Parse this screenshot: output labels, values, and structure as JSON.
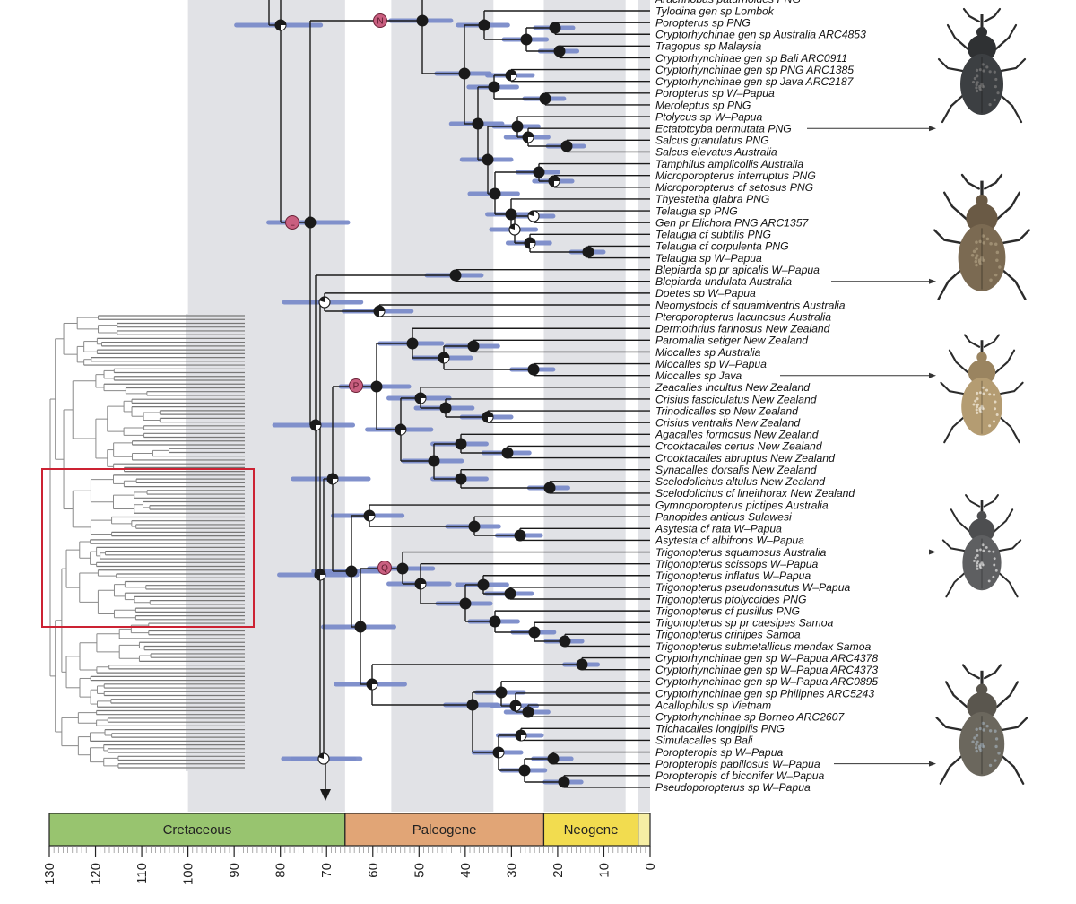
{
  "figure": {
    "taxa": [
      "Arachnobas paturnoides PNG",
      "Tylodina gen sp Lombok",
      "Poropterus sp PNG",
      "Cryptorhychinae gen sp Australia ARC4853",
      "Tragopus sp Malaysia",
      "Cryptorhynchinae gen sp Bali ARC0911",
      "Cryptorhynchinae gen sp PNG ARC1385",
      "Cryptorhynchinae gen sp Java ARC2187",
      "Poropterus sp W–Papua",
      "Meroleptus sp PNG",
      "Ptolycus sp W–Papua",
      "Ectatotcyba permutata PNG",
      "Salcus granulatus PNG",
      "Salcus elevatus Australia",
      "Tamphilus amplicollis Australia",
      "Microporopterus interruptus PNG",
      "Microporopterus cf setosus PNG",
      "Thyestetha glabra PNG",
      "Telaugia sp PNG",
      "Gen pr Elichora PNG ARC1357",
      "Telaugia cf subtilis PNG",
      "Telaugia cf corpulenta PNG",
      "Telaugia sp W–Papua",
      "Blepiarda sp pr apicalis W–Papua",
      "Blepiarda undulata Australia",
      "Doetes sp W–Papua",
      "Neomystocis cf squamiventris Australia",
      "Pteroporopterus lacunosus Australia",
      "Dermothrius farinosus New Zealand",
      "Paromalia setiger New Zealand",
      "Miocalles sp Australia",
      "Miocalles sp W–Papua",
      "Miocalles sp Java",
      "Zeacalles incultus New Zealand",
      "Crisius fasciculatus New Zealand",
      "Trinodicalles sp New Zealand",
      "Crisius ventralis New Zealand",
      "Agacalles formosus New Zealand",
      "Crooktacalles certus New Zealand",
      "Crooktacalles abruptus New Zealand",
      "Synacalles dorsalis New Zealand",
      "Scelodolichus altulus New Zealand",
      "Scelodolichus cf lineithorax New Zealand",
      "Gymnoporopterus pictipes Australia",
      "Panopides anticus Sulawesi",
      "Asytesta cf rata W–Papua",
      "Asytesta cf albifrons W–Papua",
      "Trigonopterus squamosus Australia",
      "Trigonopterus scissops W–Papua",
      "Trigonopterus inflatus W–Papua",
      "Trigonopterus pseudonasutus W–Papua",
      "Trigonopterus ptolycoides PNG",
      "Trigonopterus cf pusillus PNG",
      "Trigonopterus sp pr caesipes Samoa",
      "Trigonopterus crinipes Samoa",
      "Trigonopterus submetallicus mendax Samoa",
      "Cryptorhynchinae gen sp W–Papua ARC4378",
      "Cryptorhynchinae gen sp W–Papua ARC4373",
      "Cryptorhynchinae gen sp W–Papua ARC0895",
      "Cryptorhynchinae gen sp Philipnes ARC5243",
      "Acallophilus sp Vietnam",
      "Cryptorhynchinae sp Borneo ARC2607",
      "Trichacalles longipilis PNG",
      "Simulacalles sp Bali",
      "Poropteropis sp W–Papua",
      "Poropteropis papillosus W–Papua",
      "Poropteropis cf biconifer W–Papua",
      "Pseudoporopterus sp W–Papua"
    ],
    "clade_markers": [
      "N",
      "L",
      "P",
      "Q"
    ],
    "photo_arrow_taxa": [
      11,
      24,
      32,
      47,
      65
    ],
    "periods": [
      {
        "name": "Cretaceous",
        "from": 130,
        "to": 66,
        "color": "#98c46f"
      },
      {
        "name": "Paleogene",
        "from": 66,
        "to": 23,
        "color": "#e1a576"
      },
      {
        "name": "Neogene",
        "from": 23,
        "to": 2.6,
        "color": "#f2dc4f"
      },
      {
        "name": "",
        "from": 2.6,
        "to": 0,
        "color": "#f6eea4"
      }
    ],
    "axis_ticks": [
      "130",
      "120",
      "110",
      "100",
      "90",
      "80",
      "70",
      "60",
      "50",
      "40",
      "30",
      "20",
      "10",
      "0"
    ],
    "axis_range_ma": [
      130,
      0
    ],
    "colors": {
      "band": "#e1e2e6",
      "hpd_bar": "#7b8cca",
      "marker": "#c95f80",
      "branch": "#1a1a1a",
      "highlight_box": "#cc2233"
    }
  }
}
